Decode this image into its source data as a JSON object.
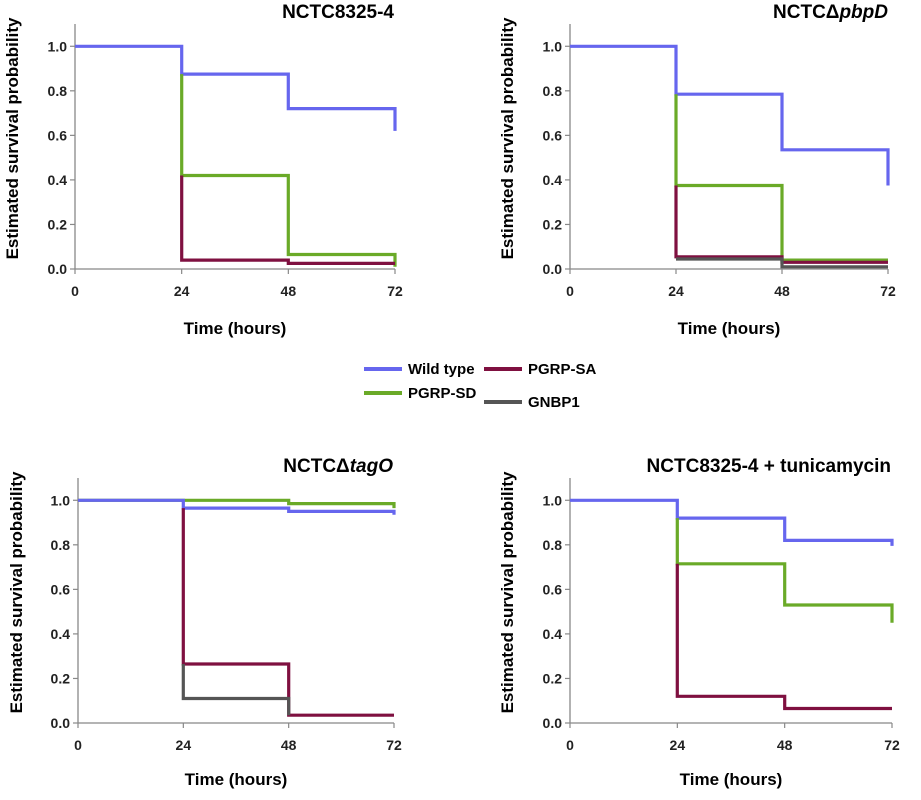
{
  "legend": {
    "items": [
      {
        "name": "Wild type",
        "color": "#6666ee"
      },
      {
        "name": "PGRP-SA",
        "color": "#7f1040"
      },
      {
        "name": "PGRP-SD",
        "color": "#6aaa28"
      },
      {
        "name": "GNBP1",
        "color": "#555555"
      }
    ]
  },
  "chart_data": [
    {
      "type": "line",
      "step": true,
      "title": {
        "prefix": "NCTC8325-4",
        "italic": "",
        "suffix": ""
      },
      "xlabel": "Time (hours)",
      "ylabel": "Estimated survival probability",
      "xlim": [
        0,
        72
      ],
      "ylim": [
        0,
        1.1
      ],
      "xticks": [
        "0",
        "24",
        "48",
        "72"
      ],
      "yticks": [
        "0.0",
        "0.2",
        "0.4",
        "0.6",
        "0.8",
        "1.0"
      ],
      "series": [
        {
          "name": "Wild type",
          "color": "#6666ee",
          "points": [
            [
              0,
              1.0
            ],
            [
              24,
              1.0
            ],
            [
              24,
              0.875
            ],
            [
              48,
              0.875
            ],
            [
              48,
              0.72
            ],
            [
              72,
              0.72
            ],
            [
              72,
              0.62
            ]
          ]
        },
        {
          "name": "PGRP-SD",
          "color": "#6aaa28",
          "points": [
            [
              24,
              0.875
            ],
            [
              24,
              0.42
            ],
            [
              48,
              0.42
            ],
            [
              48,
              0.065
            ],
            [
              72,
              0.065
            ],
            [
              72,
              0.01
            ]
          ]
        },
        {
          "name": "PGRP-SA",
          "color": "#7f1040",
          "points": [
            [
              24,
              0.42
            ],
            [
              24,
              0.04
            ],
            [
              48,
              0.04
            ],
            [
              48,
              0.025
            ],
            [
              72,
              0.025
            ]
          ]
        }
      ]
    },
    {
      "type": "line",
      "step": true,
      "title": {
        "prefix": "NCTCΔ",
        "italic": "pbpD",
        "suffix": ""
      },
      "xlabel": "Time (hours)",
      "ylabel": "Estimated survival probability",
      "xlim": [
        0,
        72
      ],
      "ylim": [
        0,
        1.1
      ],
      "xticks": [
        "0",
        "24",
        "48",
        "72"
      ],
      "yticks": [
        "0.0",
        "0.2",
        "0.4",
        "0.6",
        "0.8",
        "1.0"
      ],
      "series": [
        {
          "name": "Wild type",
          "color": "#6666ee",
          "points": [
            [
              0,
              1.0
            ],
            [
              24,
              1.0
            ],
            [
              24,
              0.785
            ],
            [
              48,
              0.785
            ],
            [
              48,
              0.535
            ],
            [
              72,
              0.535
            ],
            [
              72,
              0.375
            ]
          ]
        },
        {
          "name": "PGRP-SD",
          "color": "#6aaa28",
          "points": [
            [
              24,
              0.785
            ],
            [
              24,
              0.375
            ],
            [
              48,
              0.375
            ],
            [
              48,
              0.04
            ],
            [
              72,
              0.04
            ]
          ]
        },
        {
          "name": "PGRP-SA",
          "color": "#7f1040",
          "points": [
            [
              24,
              0.375
            ],
            [
              24,
              0.055
            ],
            [
              48,
              0.055
            ],
            [
              48,
              0.03
            ],
            [
              72,
              0.03
            ]
          ]
        },
        {
          "name": "GNBP1",
          "color": "#555555",
          "points": [
            [
              24,
              0.045
            ],
            [
              48,
              0.045
            ],
            [
              48,
              0.01
            ],
            [
              72,
              0.01
            ]
          ]
        }
      ]
    },
    {
      "type": "line",
      "step": true,
      "title": {
        "prefix": "NCTCΔ",
        "italic": "tagO",
        "suffix": ""
      },
      "xlabel": "Time (hours)",
      "ylabel": "Estimated survival probability",
      "xlim": [
        0,
        72
      ],
      "ylim": [
        0,
        1.1
      ],
      "xticks": [
        "0",
        "24",
        "48",
        "72"
      ],
      "yticks": [
        "0.0",
        "0.2",
        "0.4",
        "0.6",
        "0.8",
        "1.0"
      ],
      "series": [
        {
          "name": "PGRP-SD",
          "color": "#6aaa28",
          "points": [
            [
              0,
              1.0
            ],
            [
              48,
              1.0
            ],
            [
              48,
              0.985
            ],
            [
              72,
              0.985
            ],
            [
              72,
              0.965
            ]
          ]
        },
        {
          "name": "Wild type",
          "color": "#6666ee",
          "points": [
            [
              0,
              1.0
            ],
            [
              24,
              1.0
            ],
            [
              24,
              0.965
            ],
            [
              48,
              0.965
            ],
            [
              48,
              0.95
            ],
            [
              72,
              0.95
            ],
            [
              72,
              0.935
            ]
          ]
        },
        {
          "name": "PGRP-SA",
          "color": "#7f1040",
          "points": [
            [
              24,
              0.965
            ],
            [
              24,
              0.265
            ],
            [
              48,
              0.265
            ],
            [
              48,
              0.035
            ],
            [
              72,
              0.035
            ]
          ]
        },
        {
          "name": "GNBP1",
          "color": "#555555",
          "points": [
            [
              24,
              0.265
            ],
            [
              24,
              0.11
            ],
            [
              48,
              0.11
            ],
            [
              48,
              0.035
            ]
          ]
        }
      ]
    },
    {
      "type": "line",
      "step": true,
      "title": {
        "prefix": "NCTC8325-4 + tunicamycin",
        "italic": "",
        "suffix": ""
      },
      "xlabel": "Time (hours)",
      "ylabel": "Estimated survival probability",
      "xlim": [
        0,
        72
      ],
      "ylim": [
        0,
        1.1
      ],
      "xticks": [
        "0",
        "24",
        "48",
        "72"
      ],
      "yticks": [
        "0.0",
        "0.2",
        "0.4",
        "0.6",
        "0.8",
        "1.0"
      ],
      "series": [
        {
          "name": "Wild type",
          "color": "#6666ee",
          "points": [
            [
              0,
              1.0
            ],
            [
              24,
              1.0
            ],
            [
              24,
              0.92
            ],
            [
              48,
              0.92
            ],
            [
              48,
              0.82
            ],
            [
              72,
              0.82
            ],
            [
              72,
              0.795
            ]
          ]
        },
        {
          "name": "PGRP-SD",
          "color": "#6aaa28",
          "points": [
            [
              24,
              0.92
            ],
            [
              24,
              0.715
            ],
            [
              48,
              0.715
            ],
            [
              48,
              0.53
            ],
            [
              72,
              0.53
            ],
            [
              72,
              0.45
            ]
          ]
        },
        {
          "name": "PGRP-SA",
          "color": "#7f1040",
          "points": [
            [
              24,
              0.715
            ],
            [
              24,
              0.12
            ],
            [
              48,
              0.12
            ],
            [
              48,
              0.065
            ],
            [
              72,
              0.065
            ]
          ]
        }
      ]
    }
  ]
}
